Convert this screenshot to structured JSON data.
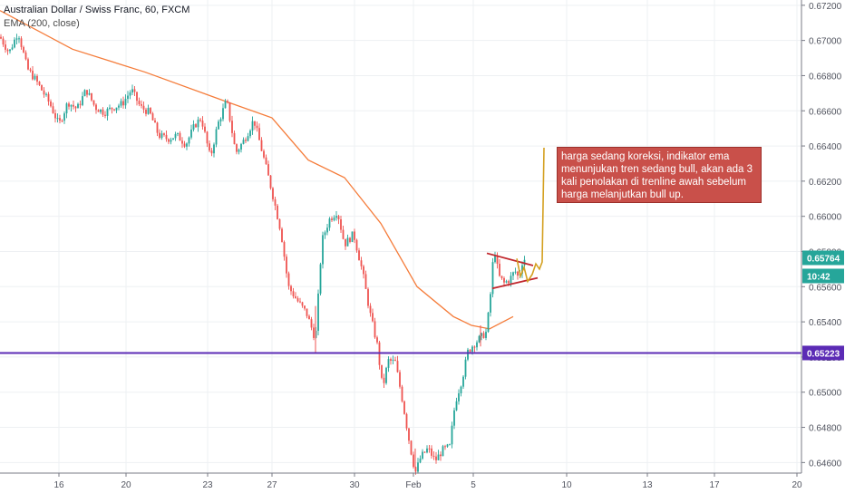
{
  "header": {
    "symbol_title": "Australian Dollar / Swiss Franc, 60, FXCM",
    "indicator_label": "EMA (200, close)"
  },
  "annotation": {
    "text": "harga sedang koreksi, indikator ema menunjukan tren sedang bull, akan ada 3 kali penolakan di trenline awah sebelum harga melanjutkan bull up."
  },
  "price_labels": {
    "current_price": "0.65764",
    "countdown": "10:42",
    "support_level": "0.65223"
  },
  "colors": {
    "up_candle": "#26a69a",
    "down_candle": "#ef5350",
    "ema_line": "#f57c3a",
    "support_line": "#5b2bb5",
    "triangle_lines": "#c1272d",
    "projection_path": "#d4a020",
    "annotation_bg": "#c9504a",
    "current_price_label": "#26a69a"
  },
  "chart_data": {
    "type": "candlestick",
    "title": "Australian Dollar / Swiss Franc, 60, FXCM",
    "timeframe": "60",
    "x_tick_labels": [
      "16",
      "20",
      "23",
      "27",
      "30",
      "Feb",
      "5",
      "10",
      "13",
      "17",
      "20"
    ],
    "y_tick_labels": [
      "0.64600",
      "0.64800",
      "0.65000",
      "0.65200",
      "0.65400",
      "0.65600",
      "0.65800",
      "0.66000",
      "0.66200",
      "0.66400",
      "0.66600",
      "0.66800",
      "0.67000",
      "0.67200"
    ],
    "ylim": [
      0.6454,
      0.6723
    ],
    "y_ticks": [
      0.646,
      0.648,
      0.65,
      0.652,
      0.654,
      0.656,
      0.658,
      0.66,
      0.662,
      0.664,
      0.666,
      0.668,
      0.67,
      0.672
    ],
    "close_path": [
      [
        0,
        0.6702
      ],
      [
        10,
        0.6693
      ],
      [
        20,
        0.6705
      ],
      [
        30,
        0.6684
      ],
      [
        40,
        0.6677
      ],
      [
        55,
        0.6664
      ],
      [
        65,
        0.6652
      ],
      [
        75,
        0.6665
      ],
      [
        85,
        0.6661
      ],
      [
        95,
        0.6672
      ],
      [
        105,
        0.6662
      ],
      [
        115,
        0.6659
      ],
      [
        125,
        0.6662
      ],
      [
        135,
        0.6664
      ],
      [
        145,
        0.6672
      ],
      [
        155,
        0.6662
      ],
      [
        165,
        0.6659
      ],
      [
        175,
        0.6646
      ],
      [
        185,
        0.6644
      ],
      [
        195,
        0.6646
      ],
      [
        205,
        0.6641
      ],
      [
        215,
        0.6652
      ],
      [
        222,
        0.6656
      ],
      [
        232,
        0.6633
      ],
      [
        240,
        0.6652
      ],
      [
        250,
        0.6666
      ],
      [
        260,
        0.6636
      ],
      [
        270,
        0.6644
      ],
      [
        280,
        0.6655
      ],
      [
        290,
        0.6635
      ],
      [
        300,
        0.6614
      ],
      [
        310,
        0.6591
      ],
      [
        318,
        0.656
      ],
      [
        328,
        0.6552
      ],
      [
        338,
        0.6545
      ],
      [
        348,
        0.653
      ],
      [
        355,
        0.6586
      ],
      [
        363,
        0.6598
      ],
      [
        372,
        0.6603
      ],
      [
        380,
        0.6584
      ],
      [
        390,
        0.659
      ],
      [
        400,
        0.6568
      ],
      [
        408,
        0.6545
      ],
      [
        416,
        0.6527
      ],
      [
        422,
        0.6502
      ],
      [
        428,
        0.6518
      ],
      [
        436,
        0.6517
      ],
      [
        444,
        0.6495
      ],
      [
        452,
        0.647
      ],
      [
        458,
        0.6454
      ],
      [
        464,
        0.6463
      ],
      [
        472,
        0.6468
      ],
      [
        480,
        0.6461
      ],
      [
        488,
        0.6467
      ],
      [
        496,
        0.6469
      ],
      [
        502,
        0.6494
      ],
      [
        510,
        0.6508
      ],
      [
        516,
        0.6523
      ],
      [
        522,
        0.6527
      ],
      [
        530,
        0.6531
      ],
      [
        536,
        0.6534
      ],
      [
        540,
        0.6549
      ],
      [
        545,
        0.6583
      ],
      [
        550,
        0.6566
      ],
      [
        556,
        0.6562
      ],
      [
        562,
        0.6564
      ],
      [
        568,
        0.6569
      ],
      [
        572,
        0.6565
      ],
      [
        576,
        0.6574
      ],
      [
        579,
        0.6576
      ]
    ],
    "ema": {
      "name": "EMA (200, close)",
      "path": [
        [
          0,
          0.6717
        ],
        [
          80,
          0.6695
        ],
        [
          160,
          0.6682
        ],
        [
          240,
          0.6667
        ],
        [
          300,
          0.6656
        ],
        [
          340,
          0.6632
        ],
        [
          380,
          0.6622
        ],
        [
          420,
          0.6596
        ],
        [
          460,
          0.656
        ],
        [
          500,
          0.6543
        ],
        [
          520,
          0.6538
        ],
        [
          540,
          0.6536
        ],
        [
          566,
          0.6543
        ]
      ]
    },
    "support_line": 0.65223,
    "triangle": {
      "upper": [
        [
          537,
          0.6579
        ],
        [
          588,
          0.6572
        ]
      ],
      "lower": [
        [
          543,
          0.6559
        ],
        [
          593,
          0.6565
        ]
      ]
    },
    "projection": [
      [
        570,
        0.6576
      ],
      [
        574,
        0.6566
      ],
      [
        578,
        0.6571
      ],
      [
        582,
        0.6563
      ],
      [
        587,
        0.6567
      ],
      [
        591,
        0.6573
      ],
      [
        595,
        0.657
      ],
      [
        598,
        0.6574
      ],
      [
        600,
        0.6639
      ]
    ]
  }
}
